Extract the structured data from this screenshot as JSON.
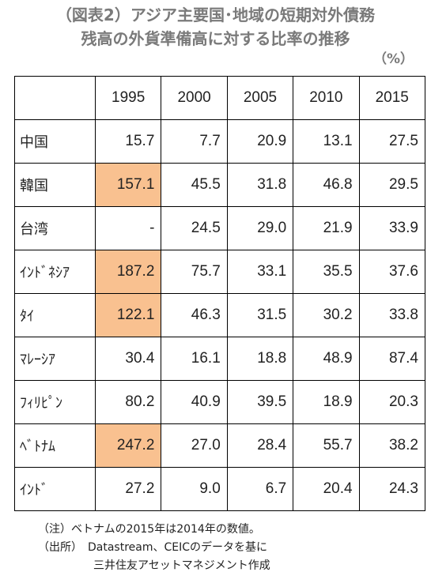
{
  "title_line1": "（図表2）アジア主要国･地域の短期対外債務",
  "title_line2": "残高の外貨準備高に対する比率の推移",
  "unit": "（%）",
  "table": {
    "corner": "",
    "years": [
      "1995",
      "2000",
      "2005",
      "2010",
      "2015"
    ],
    "rows": [
      {
        "country": "中国",
        "values": [
          "15.7",
          "7.7",
          "20.9",
          "13.1",
          "27.5"
        ],
        "highlight": [
          false,
          false,
          false,
          false,
          false
        ]
      },
      {
        "country": "韓国",
        "values": [
          "157.1",
          "45.5",
          "31.8",
          "46.8",
          "29.5"
        ],
        "highlight": [
          true,
          false,
          false,
          false,
          false
        ]
      },
      {
        "country": "台湾",
        "values": [
          "-",
          "24.5",
          "29.0",
          "21.9",
          "33.9"
        ],
        "highlight": [
          false,
          false,
          false,
          false,
          false
        ]
      },
      {
        "country": "ｲﾝﾄﾞﾈｼｱ",
        "values": [
          "187.2",
          "75.7",
          "33.1",
          "35.5",
          "37.6"
        ],
        "highlight": [
          true,
          false,
          false,
          false,
          false
        ]
      },
      {
        "country": "ﾀｲ",
        "values": [
          "122.1",
          "46.3",
          "31.5",
          "30.2",
          "33.8"
        ],
        "highlight": [
          true,
          false,
          false,
          false,
          false
        ]
      },
      {
        "country": "ﾏﾚｰｼｱ",
        "values": [
          "30.4",
          "16.1",
          "18.8",
          "48.9",
          "87.4"
        ],
        "highlight": [
          false,
          false,
          false,
          false,
          false
        ]
      },
      {
        "country": "ﾌｨﾘﾋﾟﾝ",
        "values": [
          "80.2",
          "40.9",
          "39.5",
          "18.9",
          "20.3"
        ],
        "highlight": [
          false,
          false,
          false,
          false,
          false
        ]
      },
      {
        "country": "ﾍﾞﾄﾅﾑ",
        "values": [
          "247.2",
          "27.0",
          "28.4",
          "55.7",
          "38.2"
        ],
        "highlight": [
          true,
          false,
          false,
          false,
          false
        ]
      },
      {
        "country": "ｲﾝﾄﾞ",
        "values": [
          "27.2",
          "9.0",
          "6.7",
          "20.4",
          "24.3"
        ],
        "highlight": [
          false,
          false,
          false,
          false,
          false
        ]
      }
    ],
    "highlight_color": "#f9c190"
  },
  "notes": {
    "line1": "（注）ベトナムの2015年は2014年の数値。",
    "line2": "（出所）　Datastream、CEICのデータを基に",
    "line3": "三井住友アセットマネジメント作成"
  }
}
